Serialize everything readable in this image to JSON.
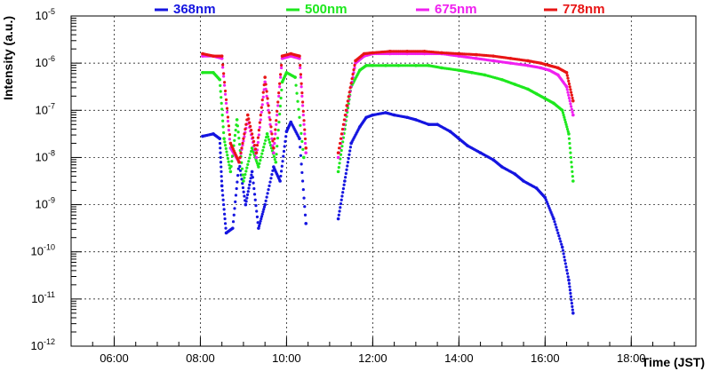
{
  "chart_data": {
    "type": "scatter",
    "title": "",
    "xlabel": "Time (JST)",
    "ylabel": "Intensity (a.u.)",
    "x_unit": "hours",
    "xlim": [
      5.0,
      19.5
    ],
    "ylim_log10": [
      -12,
      -5
    ],
    "yscale": "log",
    "grid": true,
    "x_ticks": [
      {
        "value": 6,
        "label": "06:00"
      },
      {
        "value": 8,
        "label": "08:00"
      },
      {
        "value": 10,
        "label": "10:00"
      },
      {
        "value": 12,
        "label": "12:00"
      },
      {
        "value": 14,
        "label": "14:00"
      },
      {
        "value": 16,
        "label": "16:00"
      },
      {
        "value": 18,
        "label": "18:00"
      }
    ],
    "y_ticks": [
      {
        "value": -12,
        "base": "10",
        "exp": "-12"
      },
      {
        "value": -11,
        "base": "10",
        "exp": "-11"
      },
      {
        "value": -10,
        "base": "10",
        "exp": "-10"
      },
      {
        "value": -9,
        "base": "10",
        "exp": "-9"
      },
      {
        "value": -8,
        "base": "10",
        "exp": "-8"
      },
      {
        "value": -7,
        "base": "10",
        "exp": "-7"
      },
      {
        "value": -6,
        "base": "10",
        "exp": "-6"
      },
      {
        "value": -5,
        "base": "10",
        "exp": "-5"
      }
    ],
    "legend_position": "top",
    "series": [
      {
        "name": "368nm",
        "color": "#1515e0",
        "x": [
          8.05,
          8.3,
          8.45,
          8.5,
          8.6,
          8.75,
          8.9,
          9.05,
          9.2,
          9.35,
          9.5,
          9.7,
          9.85,
          10.0,
          10.1,
          10.3,
          10.45,
          11.2,
          11.35,
          11.5,
          11.7,
          11.85,
          12.0,
          12.3,
          12.5,
          12.8,
          13.0,
          13.3,
          13.5,
          13.8,
          14.0,
          14.2,
          14.5,
          14.8,
          15.0,
          15.3,
          15.5,
          15.8,
          16.0,
          16.2,
          16.4,
          16.55,
          16.65
        ],
        "y_log10": [
          -7.55,
          -7.5,
          -7.6,
          -8.6,
          -9.6,
          -9.5,
          -8.1,
          -9.0,
          -8.3,
          -9.5,
          -9.0,
          -8.2,
          -8.5,
          -7.45,
          -7.25,
          -7.6,
          -9.4,
          -9.3,
          -8.5,
          -7.7,
          -7.35,
          -7.15,
          -7.1,
          -7.05,
          -7.1,
          -7.15,
          -7.2,
          -7.3,
          -7.3,
          -7.45,
          -7.6,
          -7.75,
          -7.9,
          -8.05,
          -8.2,
          -8.35,
          -8.5,
          -8.65,
          -8.85,
          -9.3,
          -9.9,
          -10.6,
          -11.3
        ]
      },
      {
        "name": "500nm",
        "color": "#1ee81e",
        "x": [
          8.05,
          8.3,
          8.45,
          8.55,
          8.7,
          8.85,
          9.0,
          9.2,
          9.35,
          9.55,
          9.75,
          9.9,
          10.0,
          10.2,
          10.4,
          11.2,
          11.35,
          11.5,
          11.7,
          11.85,
          12.0,
          12.3,
          12.6,
          13.0,
          13.3,
          13.6,
          14.0,
          14.3,
          14.6,
          15.0,
          15.3,
          15.6,
          15.8,
          16.0,
          16.2,
          16.4,
          16.55,
          16.65
        ],
        "y_log10": [
          -6.2,
          -6.2,
          -6.35,
          -7.6,
          -8.3,
          -7.2,
          -8.5,
          -7.8,
          -8.2,
          -7.5,
          -8.1,
          -6.4,
          -6.2,
          -6.3,
          -8.0,
          -8.3,
          -7.4,
          -6.5,
          -6.15,
          -6.05,
          -6.05,
          -6.05,
          -6.05,
          -6.05,
          -6.05,
          -6.1,
          -6.15,
          -6.2,
          -6.25,
          -6.35,
          -6.45,
          -6.55,
          -6.65,
          -6.75,
          -6.85,
          -7.0,
          -7.5,
          -8.5
        ]
      },
      {
        "name": "675nm",
        "color": "#f020f0",
        "x": [
          8.05,
          8.3,
          8.5,
          8.7,
          8.9,
          9.1,
          9.3,
          9.5,
          9.7,
          9.9,
          10.1,
          10.3,
          10.45,
          11.2,
          11.4,
          11.6,
          11.8,
          12.0,
          12.4,
          12.8,
          13.2,
          13.6,
          14.0,
          14.4,
          14.8,
          15.2,
          15.6,
          15.9,
          16.1,
          16.3,
          16.5,
          16.65
        ],
        "y_log10": [
          -5.85,
          -5.85,
          -5.9,
          -7.8,
          -8.1,
          -7.2,
          -8.0,
          -6.4,
          -7.9,
          -5.9,
          -5.85,
          -5.9,
          -7.9,
          -8.0,
          -7.0,
          -6.0,
          -5.85,
          -5.8,
          -5.8,
          -5.8,
          -5.8,
          -5.8,
          -5.85,
          -5.9,
          -5.95,
          -6.0,
          -6.05,
          -6.1,
          -6.15,
          -6.25,
          -6.5,
          -7.1
        ]
      },
      {
        "name": "778nm",
        "color": "#e81515",
        "x": [
          8.05,
          8.3,
          8.5,
          8.7,
          8.9,
          9.1,
          9.3,
          9.5,
          9.7,
          9.9,
          10.1,
          10.3,
          10.45,
          11.2,
          11.4,
          11.6,
          11.8,
          12.0,
          12.4,
          12.8,
          13.2,
          13.6,
          14.0,
          14.4,
          14.8,
          15.2,
          15.6,
          15.9,
          16.1,
          16.3,
          16.5,
          16.65
        ],
        "y_log10": [
          -5.8,
          -5.85,
          -5.85,
          -7.7,
          -8.1,
          -7.1,
          -7.9,
          -6.3,
          -7.8,
          -5.85,
          -5.8,
          -5.85,
          -7.8,
          -7.9,
          -6.9,
          -5.95,
          -5.8,
          -5.78,
          -5.75,
          -5.75,
          -5.75,
          -5.78,
          -5.8,
          -5.82,
          -5.85,
          -5.9,
          -5.95,
          -6.0,
          -6.05,
          -6.1,
          -6.2,
          -6.8
        ]
      }
    ]
  }
}
